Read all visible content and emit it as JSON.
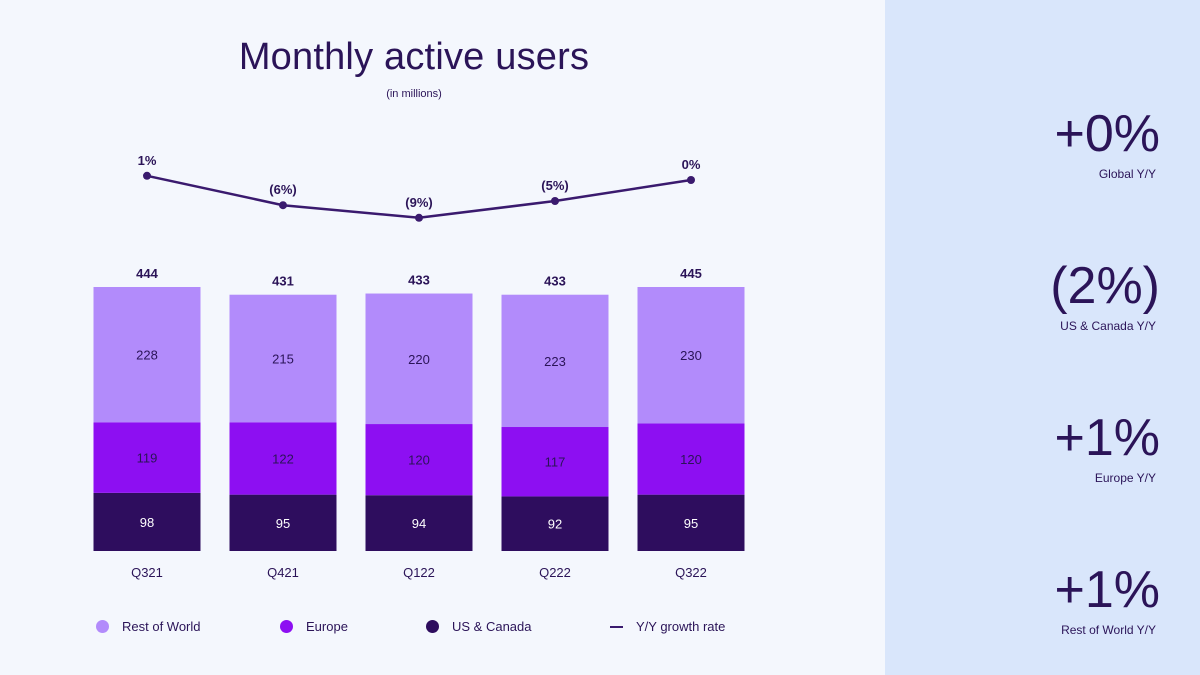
{
  "chart_data": {
    "type": "bar",
    "stacked": true,
    "title": "Monthly active users",
    "subtitle": "(in millions)",
    "categories": [
      "Q321",
      "Q421",
      "Q122",
      "Q222",
      "Q322"
    ],
    "totals": [
      "444",
      "431",
      "433",
      "433",
      "445"
    ],
    "series": [
      {
        "name": "US & Canada",
        "values": [
          98,
          95,
          94,
          92,
          95
        ],
        "color": "#2e0d5e"
      },
      {
        "name": "Europe",
        "values": [
          119,
          122,
          120,
          117,
          120
        ],
        "color": "#8d0ff2"
      },
      {
        "name": "Rest of World",
        "values": [
          228,
          215,
          220,
          223,
          230
        ],
        "color": "#b28bfb"
      }
    ],
    "growth": {
      "name": "Y/Y growth rate",
      "values": [
        1,
        -6,
        -9,
        -5,
        0
      ],
      "labels": [
        "1%",
        "(6%)",
        "(9%)",
        "(5%)",
        "0%"
      ],
      "color": "#3a1a6e"
    },
    "ylim": [
      0,
      445
    ],
    "legend_position": "bottom"
  },
  "legend": {
    "rest_of_world": "Rest of World",
    "europe": "Europe",
    "us_canada": "US & Canada",
    "growth": "Y/Y growth rate"
  },
  "kpis": [
    {
      "value": "+0%",
      "label": "Global Y/Y"
    },
    {
      "value": "(2%)",
      "label": "US & Canada Y/Y"
    },
    {
      "value": "+1%",
      "label": "Europe Y/Y"
    },
    {
      "value": "+1%",
      "label": "Rest of World Y/Y"
    }
  ]
}
